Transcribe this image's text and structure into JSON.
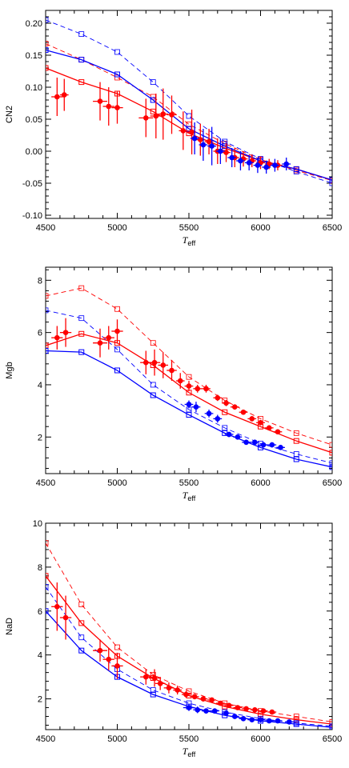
{
  "colors": {
    "red": "#ff0000",
    "blue": "#0000ff",
    "axis": "#000000"
  },
  "chart_data": [
    {
      "type": "line",
      "ylabel": "CN2",
      "xlabel_main": "T",
      "xlabel_sub": "eff",
      "xlim": [
        4500,
        6500
      ],
      "ylim": [
        -0.105,
        0.22
      ],
      "xticks": [
        4500,
        5000,
        5500,
        6000,
        6500
      ],
      "yticks": [
        -0.1,
        -0.05,
        0.0,
        0.05,
        0.1,
        0.15,
        0.2
      ],
      "ytick_labels": [
        "-0.10",
        "-0.05",
        "0.00",
        "0.05",
        "0.10",
        "0.15",
        "0.20"
      ],
      "grid": false,
      "series": [
        {
          "style": "solid-squares",
          "color": "red",
          "x": [
            4500,
            4750,
            5000,
            5250,
            5500,
            5750,
            6000,
            6250,
            6500
          ],
          "y": [
            0.13,
            0.108,
            0.09,
            0.062,
            0.028,
            0.005,
            -0.015,
            -0.028,
            -0.045
          ]
        },
        {
          "style": "dashed-squares",
          "color": "red",
          "x": [
            4500,
            4750,
            5000,
            5250,
            5500,
            5750,
            6000,
            6250,
            6500
          ],
          "y": [
            0.168,
            0.143,
            0.115,
            0.085,
            0.042,
            0.012,
            -0.013,
            -0.03,
            -0.046
          ]
        },
        {
          "style": "solid-squares",
          "color": "blue",
          "x": [
            4500,
            4750,
            5000,
            5250,
            5500,
            5750,
            6000,
            6250,
            6500
          ],
          "y": [
            0.158,
            0.143,
            0.12,
            0.08,
            0.035,
            0.008,
            -0.015,
            -0.028,
            -0.045
          ]
        },
        {
          "style": "dashed-squares",
          "color": "blue",
          "x": [
            4500,
            4750,
            5000,
            5250,
            5500,
            5750,
            6000,
            6250,
            6500
          ],
          "y": [
            0.205,
            0.183,
            0.155,
            0.108,
            0.055,
            0.015,
            -0.012,
            -0.032,
            -0.05
          ]
        },
        {
          "style": "points",
          "color": "red",
          "x": [
            4580,
            4630,
            4880,
            4940,
            5000,
            5200,
            5270,
            5320,
            5380,
            5460,
            5520,
            5580,
            5640,
            5700,
            5760,
            5820,
            5880,
            5940,
            6000,
            6060,
            6120
          ],
          "y": [
            0.085,
            0.088,
            0.078,
            0.07,
            0.068,
            0.052,
            0.055,
            0.058,
            0.057,
            0.032,
            0.03,
            0.018,
            0.015,
            0.0,
            -0.002,
            -0.01,
            -0.012,
            -0.015,
            -0.018,
            -0.02,
            -0.022
          ],
          "xerr": [
            40,
            30,
            50,
            40,
            40,
            50,
            40,
            35,
            35,
            30,
            30,
            30,
            30,
            30,
            30,
            30,
            30,
            30,
            30,
            30,
            30
          ],
          "yerr": [
            0.03,
            0.025,
            0.03,
            0.03,
            0.025,
            0.03,
            0.035,
            0.04,
            0.03,
            0.03,
            0.035,
            0.025,
            0.02,
            0.02,
            0.015,
            0.015,
            0.012,
            0.01,
            0.01,
            0.008,
            0.008
          ]
        },
        {
          "style": "points",
          "color": "blue",
          "x": [
            5540,
            5600,
            5660,
            5720,
            5800,
            5860,
            5920,
            5980,
            6040,
            6100,
            6180
          ],
          "y": [
            0.02,
            0.01,
            0.008,
            0.0,
            -0.01,
            -0.015,
            -0.018,
            -0.022,
            -0.025,
            -0.022,
            -0.02
          ],
          "xerr": [
            30,
            30,
            30,
            30,
            30,
            30,
            30,
            30,
            30,
            30,
            30
          ],
          "yerr": [
            0.025,
            0.025,
            0.03,
            0.02,
            0.015,
            0.015,
            0.012,
            0.012,
            0.01,
            0.01,
            0.01
          ]
        }
      ]
    },
    {
      "type": "line",
      "ylabel": "Mgb",
      "xlabel_main": "T",
      "xlabel_sub": "eff",
      "xlim": [
        4500,
        6500
      ],
      "ylim": [
        0.6,
        8.5
      ],
      "xticks": [
        4500,
        5000,
        5500,
        6000,
        6500
      ],
      "yticks": [
        2,
        4,
        6,
        8
      ],
      "ytick_labels": [
        "2",
        "4",
        "6",
        "8"
      ],
      "grid": false,
      "series": [
        {
          "style": "solid-squares",
          "color": "red",
          "x": [
            4500,
            4750,
            5000,
            5250,
            5500,
            5750,
            6000,
            6250,
            6500
          ],
          "y": [
            5.5,
            5.95,
            5.6,
            4.75,
            3.7,
            2.95,
            2.4,
            1.85,
            1.4
          ]
        },
        {
          "style": "dashed-squares",
          "color": "red",
          "x": [
            4500,
            4750,
            5000,
            5250,
            5500,
            5750,
            6000,
            6250,
            6500
          ],
          "y": [
            7.4,
            7.7,
            6.9,
            5.6,
            4.3,
            3.4,
            2.7,
            2.15,
            1.7
          ]
        },
        {
          "style": "solid-squares",
          "color": "blue",
          "x": [
            4500,
            4750,
            5000,
            5250,
            5500,
            5750,
            6000,
            6250,
            6500
          ],
          "y": [
            5.3,
            5.25,
            4.55,
            3.6,
            2.85,
            2.15,
            1.6,
            1.15,
            0.85
          ]
        },
        {
          "style": "dashed-squares",
          "color": "blue",
          "x": [
            4500,
            4750,
            5000,
            5250,
            5500,
            5750,
            6000,
            6250,
            6500
          ],
          "y": [
            6.85,
            6.55,
            5.35,
            4.0,
            3.05,
            2.35,
            1.75,
            1.35,
            1.0
          ]
        },
        {
          "style": "points",
          "color": "red",
          "x": [
            4580,
            4640,
            4880,
            4940,
            5000,
            5200,
            5260,
            5320,
            5380,
            5440,
            5500,
            5560,
            5620,
            5700,
            5760,
            5820,
            5880,
            5940,
            6000,
            6060,
            6120
          ],
          "y": [
            5.8,
            6.0,
            5.6,
            5.8,
            6.05,
            4.85,
            4.85,
            4.75,
            4.55,
            4.15,
            3.95,
            3.85,
            3.85,
            3.5,
            3.3,
            3.15,
            2.95,
            2.7,
            2.55,
            2.35,
            2.2
          ],
          "xerr": [
            40,
            40,
            50,
            40,
            40,
            40,
            40,
            35,
            35,
            30,
            30,
            30,
            30,
            30,
            30,
            30,
            30,
            30,
            30,
            30,
            30
          ],
          "yerr": [
            0.45,
            0.55,
            0.55,
            0.45,
            0.45,
            0.45,
            0.5,
            0.5,
            0.4,
            0.3,
            0.2,
            0.15,
            0.15,
            0.12,
            0.12,
            0.1,
            0.1,
            0.1,
            0.1,
            0.1,
            0.1
          ]
        },
        {
          "style": "points",
          "color": "blue",
          "x": [
            5500,
            5550,
            5640,
            5700,
            5780,
            5840,
            5900,
            5960,
            6020,
            6080,
            6140
          ],
          "y": [
            3.25,
            3.15,
            2.9,
            2.7,
            2.1,
            2.0,
            1.8,
            1.8,
            1.7,
            1.7,
            1.6
          ],
          "xerr": [
            30,
            30,
            30,
            30,
            30,
            30,
            30,
            30,
            30,
            30,
            30
          ],
          "yerr": [
            0.15,
            0.2,
            0.15,
            0.15,
            0.1,
            0.1,
            0.1,
            0.1,
            0.1,
            0.1,
            0.1
          ]
        }
      ]
    },
    {
      "type": "line",
      "ylabel": "NaD",
      "xlabel_main": "T",
      "xlabel_sub": "eff",
      "xlim": [
        4500,
        6500
      ],
      "ylim": [
        0.6,
        10.0
      ],
      "xticks": [
        4500,
        5000,
        5500,
        6000,
        6500
      ],
      "yticks": [
        2,
        4,
        6,
        8,
        10
      ],
      "ytick_labels": [
        "2",
        "4",
        "6",
        "8",
        "10"
      ],
      "grid": false,
      "series": [
        {
          "style": "solid-squares",
          "color": "red",
          "x": [
            4500,
            4750,
            5000,
            5250,
            5500,
            5750,
            6000,
            6250,
            6500
          ],
          "y": [
            7.6,
            5.45,
            3.95,
            2.95,
            2.15,
            1.65,
            1.3,
            1.05,
            0.85
          ]
        },
        {
          "style": "dashed-squares",
          "color": "red",
          "x": [
            4500,
            4750,
            5000,
            5250,
            5500,
            5750,
            6000,
            6250,
            6500
          ],
          "y": [
            9.1,
            6.3,
            4.35,
            3.1,
            2.35,
            1.8,
            1.45,
            1.2,
            0.95
          ]
        },
        {
          "style": "solid-squares",
          "color": "blue",
          "x": [
            4500,
            4750,
            5000,
            5250,
            5500,
            5750,
            6000,
            6250,
            6500
          ],
          "y": [
            6.0,
            4.2,
            3.0,
            2.2,
            1.65,
            1.25,
            1.0,
            0.85,
            0.7
          ]
        },
        {
          "style": "dashed-squares",
          "color": "blue",
          "x": [
            4500,
            4750,
            5000,
            5250,
            5500,
            5750,
            6000,
            6250,
            6500
          ],
          "y": [
            7.1,
            4.8,
            3.35,
            2.4,
            1.8,
            1.4,
            1.1,
            0.9,
            0.75
          ]
        },
        {
          "style": "points",
          "color": "red",
          "x": [
            4580,
            4640,
            4880,
            4940,
            5000,
            5200,
            5260,
            5300,
            5360,
            5420,
            5480,
            5540,
            5600,
            5660,
            5720,
            5780,
            5840,
            5900,
            5960,
            6020,
            6080
          ],
          "y": [
            6.2,
            5.7,
            4.2,
            3.8,
            3.5,
            3.0,
            2.95,
            2.7,
            2.5,
            2.4,
            2.2,
            2.1,
            2.0,
            1.95,
            1.8,
            1.7,
            1.6,
            1.55,
            1.5,
            1.45,
            1.4
          ],
          "xerr": [
            40,
            40,
            50,
            40,
            40,
            40,
            40,
            35,
            35,
            30,
            30,
            30,
            30,
            30,
            30,
            30,
            30,
            30,
            30,
            30,
            30
          ],
          "yerr": [
            1.1,
            1.0,
            0.5,
            0.5,
            0.6,
            0.35,
            0.4,
            0.3,
            0.25,
            0.2,
            0.15,
            0.12,
            0.12,
            0.1,
            0.1,
            0.1,
            0.1,
            0.1,
            0.1,
            0.1,
            0.1
          ]
        },
        {
          "style": "points",
          "color": "blue",
          "x": [
            5500,
            5560,
            5620,
            5680,
            5760,
            5820,
            5880,
            5940,
            6000,
            6060,
            6120,
            6200
          ],
          "y": [
            1.6,
            1.5,
            1.45,
            1.45,
            1.35,
            1.2,
            1.1,
            1.05,
            1.05,
            1.0,
            1.0,
            0.95
          ],
          "xerr": [
            40,
            30,
            30,
            30,
            30,
            30,
            30,
            30,
            30,
            30,
            30,
            30
          ],
          "yerr": [
            0.15,
            0.15,
            0.12,
            0.12,
            0.1,
            0.1,
            0.1,
            0.1,
            0.1,
            0.1,
            0.1,
            0.1
          ]
        }
      ]
    }
  ]
}
